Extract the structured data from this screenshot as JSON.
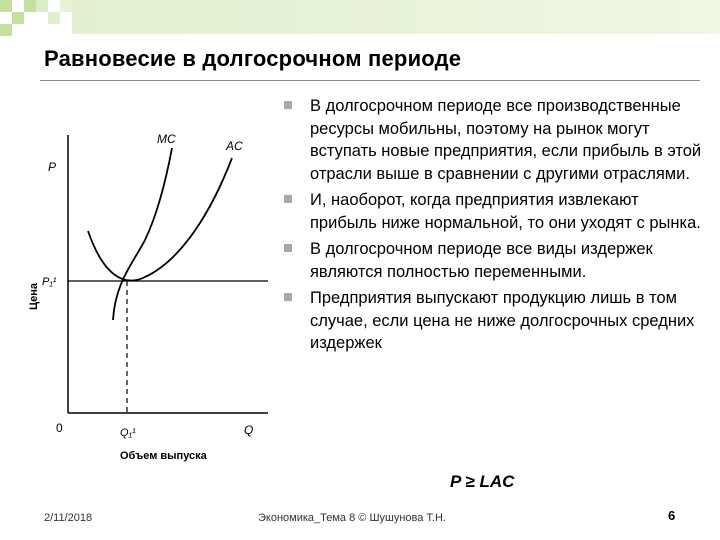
{
  "title": "Равновесие в долгосрочном периоде",
  "graph": {
    "y_axis_label": "Цена",
    "y_axis_symbol": "P",
    "price_level": "P₁¹",
    "x_axis_label": "Объем выпуска",
    "x_axis_symbol": "Q",
    "quantity_level": "Q₁¹",
    "origin": "0",
    "curve_mc": "MC",
    "curve_ac": "AC"
  },
  "bullets": [
    "В долгосрочном периоде все производственные ресурсы мобильны, поэтому на рынок могут вступать новые предприятия, если прибыль в этой отрасли выше в сравнении с другими отраслями.",
    "И, наоборот, когда предприятия извлекают прибыль ниже нормальной, то они уходят с рынка.",
    "В долгосрочном периоде все виды издержек являются полностью переменными.",
    "Предприятия выпускают продукцию лишь в том случае, если цена не ниже долгосрочных средних издержек"
  ],
  "formula": "P ≥ LAC",
  "footer": {
    "date": "2/11/2018",
    "center": "Экономика_Тема 8 © Шушунова Т.Н.",
    "page": "6"
  },
  "colors": {
    "deco_green": "#c4dfa0",
    "bullet_gray": "#a6a6a6"
  }
}
